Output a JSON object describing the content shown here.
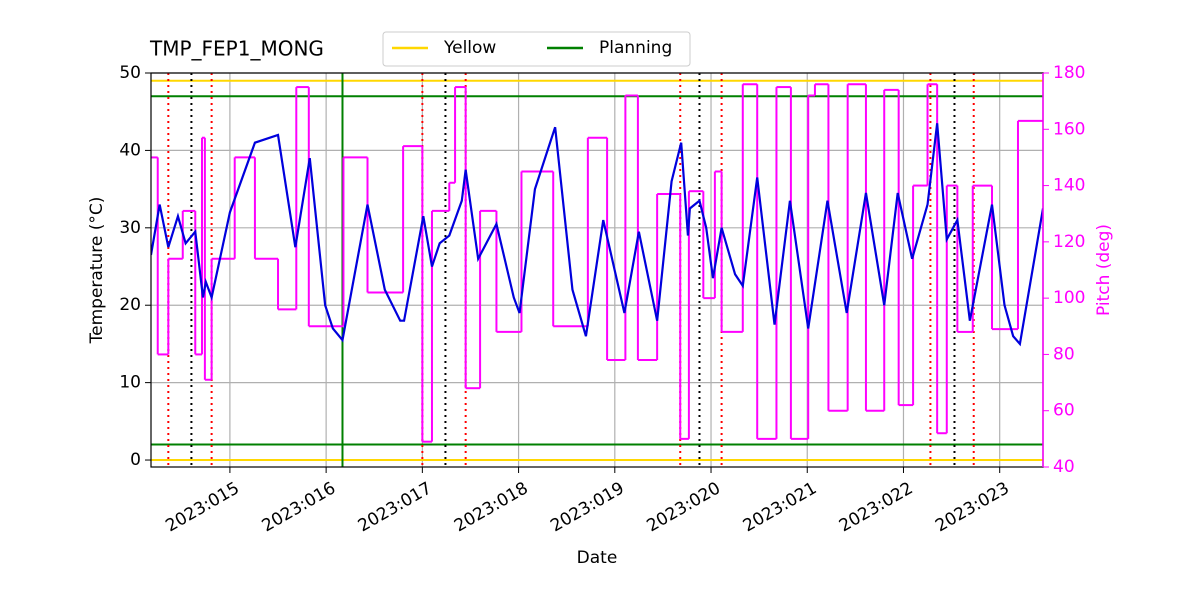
{
  "chart_data": {
    "type": "line",
    "title": "TMP_FEP1_MONG",
    "xlabel": "Date",
    "ylabel": "Temperature (°C)",
    "y2label": "Pitch (deg)",
    "xlim": [
      14.18,
      23.45
    ],
    "ylim": [
      -0.9,
      50
    ],
    "y2lim": [
      40,
      180
    ],
    "xticks": [
      {
        "value": 15,
        "label": "2023:015"
      },
      {
        "value": 16,
        "label": "2023:016"
      },
      {
        "value": 17,
        "label": "2023:017"
      },
      {
        "value": 18,
        "label": "2023:018"
      },
      {
        "value": 19,
        "label": "2023:019"
      },
      {
        "value": 20,
        "label": "2023:020"
      },
      {
        "value": 21,
        "label": "2023:021"
      },
      {
        "value": 22,
        "label": "2023:022"
      },
      {
        "value": 23,
        "label": "2023:023"
      }
    ],
    "yticks": [
      0,
      10,
      20,
      30,
      40,
      50
    ],
    "y2ticks": [
      40,
      60,
      80,
      100,
      120,
      140,
      160,
      180
    ],
    "grid": true,
    "y2color": "#ff00ff",
    "legend": "top",
    "limit_lines": [
      {
        "name": "Yellow",
        "color": "#ffd700",
        "values": [
          0,
          49
        ]
      },
      {
        "name": "Planning",
        "color": "#008000",
        "values": [
          2,
          47
        ]
      }
    ],
    "vlines": [
      {
        "color": "#008000",
        "style": "solid",
        "x": [
          16.17
        ]
      },
      {
        "color": "#ff0000",
        "style": "dotted",
        "x": [
          14.36,
          14.81,
          17.0,
          17.45,
          19.68,
          20.11,
          22.28,
          22.73
        ]
      },
      {
        "color": "#000000",
        "style": "dotted",
        "x": [
          14.6,
          17.24,
          19.88,
          22.53
        ]
      }
    ],
    "series": [
      {
        "color": "#0000dd",
        "axis": "y",
        "step": false,
        "x": [
          14.18,
          14.27,
          14.36,
          14.46,
          14.54,
          14.64,
          14.72,
          14.75,
          14.81,
          15.0,
          15.26,
          15.5,
          15.68,
          15.83,
          15.99,
          16.07,
          16.17,
          16.43,
          16.61,
          16.77,
          16.81,
          17.01,
          17.1,
          17.18,
          17.28,
          17.41,
          17.45,
          17.58,
          17.77,
          17.95,
          18.01,
          18.17,
          18.38,
          18.56,
          18.7,
          18.88,
          19.1,
          19.25,
          19.44,
          19.59,
          19.69,
          19.76,
          19.78,
          19.88,
          19.95,
          20.02,
          20.11,
          20.25,
          20.33,
          20.48,
          20.66,
          20.82,
          21.01,
          21.21,
          21.41,
          21.61,
          21.8,
          21.94,
          22.09,
          22.25,
          22.35,
          22.45,
          22.56,
          22.69,
          22.92,
          23.05,
          23.14,
          23.21,
          23.45
        ],
        "values": [
          26.5,
          33,
          27.5,
          31.5,
          28,
          29.5,
          21,
          23,
          21,
          32,
          41,
          42,
          27.5,
          39,
          20,
          17,
          15.5,
          33,
          22,
          18,
          18,
          31.5,
          25,
          28,
          29,
          33.5,
          37.5,
          26,
          30.5,
          21,
          19,
          35,
          43,
          22,
          16,
          31,
          19,
          29.5,
          18,
          36,
          41,
          29,
          32.5,
          33.5,
          30,
          23.5,
          30,
          24,
          22.5,
          36.5,
          17.5,
          33.5,
          17,
          33.5,
          19,
          34.5,
          20,
          34.5,
          26,
          33,
          43.5,
          28.5,
          31,
          18,
          33,
          20,
          16,
          15,
          32.5
        ]
      },
      {
        "color": "#ff00ff",
        "axis": "y2",
        "step": true,
        "x": [
          14.18,
          14.25,
          14.36,
          14.51,
          14.64,
          14.71,
          14.74,
          14.81,
          15.05,
          15.26,
          15.5,
          15.69,
          15.82,
          16.18,
          16.43,
          16.8,
          17.0,
          17.1,
          17.28,
          17.34,
          17.45,
          17.6,
          17.77,
          18.03,
          18.36,
          18.72,
          18.92,
          19.11,
          19.24,
          19.44,
          19.68,
          19.77,
          19.92,
          20.04,
          20.11,
          20.33,
          20.48,
          20.68,
          20.83,
          21.01,
          21.08,
          21.22,
          21.42,
          21.61,
          21.8,
          21.95,
          22.1,
          22.25,
          22.35,
          22.45,
          22.56,
          22.72,
          22.92,
          23.19,
          23.45
        ],
        "values": [
          150,
          80,
          114,
          131,
          80,
          157,
          71,
          114,
          150,
          114,
          96,
          175,
          90,
          150,
          102,
          154,
          49,
          131,
          141,
          175,
          68,
          131,
          88,
          145,
          90,
          157,
          78,
          172,
          78,
          137,
          50,
          138,
          100,
          145,
          88,
          176,
          50,
          175,
          50,
          172,
          176,
          60,
          176,
          60,
          174,
          62,
          140,
          176,
          52,
          140,
          88,
          140,
          89,
          163,
          163
        ]
      }
    ]
  }
}
